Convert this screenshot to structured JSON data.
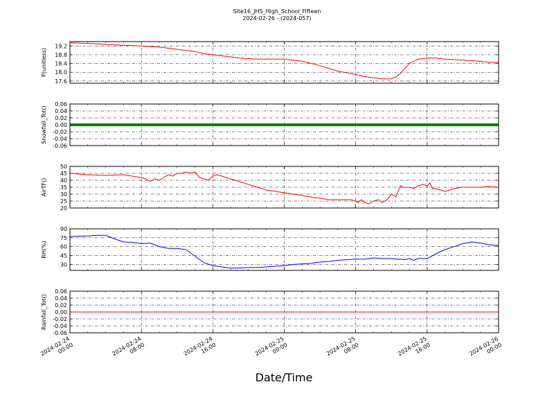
{
  "figure": {
    "title_line1": "Site16_JHS_High_School_Fifteen",
    "title_line2": "2024-02-26 - (2024-057)",
    "xlabel": "Date/Time",
    "x_ticks": [
      {
        "d1": "2024-02-24",
        "d2": "00:00",
        "h": 0
      },
      {
        "d1": "2024-02-24",
        "d2": "08:00",
        "h": 8
      },
      {
        "d1": "2024-02-24",
        "d2": "16:00",
        "h": 16
      },
      {
        "d1": "2024-02-25",
        "d2": "00:00",
        "h": 24
      },
      {
        "d1": "2024-02-25",
        "d2": "08:00",
        "h": 32
      },
      {
        "d1": "2024-02-25",
        "d2": "16:00",
        "h": 40
      },
      {
        "d1": "2024-02-26",
        "d2": "00:00",
        "h": 48
      }
    ]
  },
  "chart_data": [
    {
      "type": "line",
      "ylabel": "P(unitless)",
      "color": "#ff0000",
      "ylim": [
        17.5,
        19.4
      ],
      "yticks": [
        17.6,
        18.0,
        18.4,
        18.8,
        19.2
      ],
      "tick_decimals": 1,
      "series": [
        {
          "x_hours": [
            0,
            3,
            5,
            8,
            10,
            12,
            14,
            15,
            17,
            19,
            21,
            23,
            24,
            26,
            28,
            30,
            32,
            33,
            35,
            36,
            36.6,
            37,
            38,
            39,
            40,
            41,
            42,
            44,
            46,
            47,
            48
          ],
          "values": [
            19.35,
            19.3,
            19.25,
            19.2,
            19.15,
            19.05,
            18.95,
            18.85,
            18.75,
            18.65,
            18.6,
            18.6,
            18.6,
            18.5,
            18.3,
            18.05,
            17.9,
            17.8,
            17.7,
            17.7,
            17.8,
            17.95,
            18.4,
            18.6,
            18.65,
            18.65,
            18.6,
            18.55,
            18.5,
            18.45,
            18.45
          ]
        }
      ]
    },
    {
      "type": "line",
      "ylabel": "Snowfall_Tot()",
      "color": "#008000",
      "linewidth": 4,
      "ylim": [
        -0.06,
        0.06
      ],
      "yticks": [
        -0.06,
        -0.04,
        -0.02,
        0.0,
        0.02,
        0.04,
        0.06
      ],
      "tick_decimals": 2,
      "series": [
        {
          "x_hours": [
            0,
            48
          ],
          "values": [
            0,
            0
          ]
        }
      ]
    },
    {
      "type": "line",
      "ylabel": "AirTF()",
      "color": "#ff0000",
      "ylim": [
        20,
        50
      ],
      "yticks": [
        20,
        25,
        30,
        35,
        40,
        45,
        50
      ],
      "tick_decimals": 0,
      "series": [
        {
          "x_hours": [
            0,
            2,
            4,
            6,
            7,
            8,
            8.5,
            9,
            9.5,
            10,
            10.5,
            11,
            11.5,
            12,
            12.5,
            13,
            13.5,
            14,
            14.5,
            15,
            15.5,
            16,
            16.5,
            17,
            18,
            19,
            20,
            21,
            22,
            23,
            24,
            25,
            26,
            27,
            28,
            29,
            30,
            31,
            31.5,
            32,
            32.3,
            32.6,
            33,
            33.5,
            34,
            34.5,
            35,
            35.5,
            36,
            36.5,
            37,
            37.3,
            37.6,
            38,
            38.5,
            39,
            39.5,
            40,
            40.3,
            40.6,
            41,
            41.5,
            42,
            42.5,
            43,
            44,
            45,
            46,
            47,
            48
          ],
          "values": [
            45,
            44,
            43.5,
            44,
            43,
            42,
            41,
            39,
            41,
            40,
            42,
            44,
            43,
            45,
            45,
            46,
            45,
            46,
            42,
            41,
            40,
            43,
            44,
            43,
            41,
            39,
            37,
            35,
            33,
            32,
            31,
            30,
            29,
            28,
            27,
            26,
            26,
            26,
            26,
            25,
            24,
            26,
            24,
            23,
            25,
            26,
            24,
            26,
            30,
            28,
            36,
            35,
            35,
            35,
            34,
            36,
            37,
            36,
            38,
            34,
            34,
            33,
            32,
            33,
            34,
            35,
            35,
            35,
            35.5,
            35
          ]
        }
      ]
    },
    {
      "type": "line",
      "ylabel": "RH(%)",
      "color": "#0000ff",
      "ylim": [
        20,
        90
      ],
      "yticks": [
        30,
        45,
        60,
        75,
        90
      ],
      "tick_decimals": 0,
      "series": [
        {
          "x_hours": [
            0,
            2,
            3,
            4,
            5,
            6,
            7,
            8,
            9,
            10,
            11,
            12,
            13,
            14,
            15,
            16,
            17,
            18,
            19,
            20,
            21,
            22,
            23,
            24,
            25,
            26,
            27,
            28,
            29,
            30,
            31,
            32,
            33,
            34,
            35,
            36,
            36.5,
            37,
            37.5,
            38,
            38.5,
            39,
            40,
            40.5,
            41,
            42,
            43,
            44,
            45,
            46,
            47,
            48
          ],
          "values": [
            77,
            78,
            79,
            79,
            73,
            68,
            67,
            65,
            66,
            60,
            57,
            57,
            55,
            44,
            33,
            28,
            26,
            24,
            24,
            25,
            25,
            26,
            27,
            28,
            30,
            31,
            32,
            34,
            35,
            37,
            38,
            39,
            39,
            41,
            40,
            40,
            39,
            39,
            38,
            40,
            37,
            40,
            40,
            44,
            48,
            55,
            60,
            65,
            68,
            66,
            63,
            62
          ]
        }
      ]
    },
    {
      "type": "line",
      "ylabel": "Rainfall_Tot()",
      "color": "#ff0000",
      "linewidth": 1,
      "ylim": [
        -0.06,
        0.06
      ],
      "yticks": [
        -0.06,
        -0.04,
        -0.02,
        0.0,
        0.02,
        0.04,
        0.06
      ],
      "tick_decimals": 2,
      "series": [
        {
          "x_hours": [
            0,
            48
          ],
          "values": [
            0,
            0
          ]
        }
      ]
    }
  ]
}
